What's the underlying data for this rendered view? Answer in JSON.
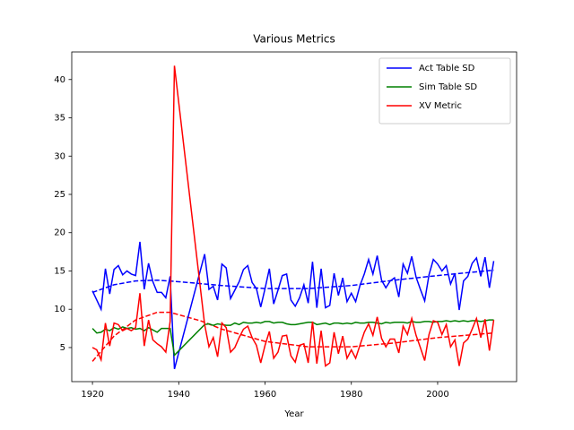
{
  "chart_data": {
    "type": "line",
    "title": "Various Metrics",
    "x_label": "Year",
    "x": [
      1920,
      1921,
      1922,
      1923,
      1924,
      1925,
      1926,
      1927,
      1928,
      1929,
      1930,
      1931,
      1932,
      1933,
      1934,
      1935,
      1936,
      1937,
      1938,
      1939,
      1946,
      1947,
      1948,
      1949,
      1950,
      1951,
      1952,
      1953,
      1954,
      1955,
      1956,
      1957,
      1958,
      1959,
      1960,
      1961,
      1962,
      1963,
      1964,
      1965,
      1966,
      1967,
      1968,
      1969,
      1970,
      1971,
      1972,
      1973,
      1974,
      1975,
      1976,
      1977,
      1978,
      1979,
      1980,
      1981,
      1982,
      1983,
      1984,
      1985,
      1986,
      1987,
      1988,
      1989,
      1990,
      1991,
      1992,
      1993,
      1994,
      1995,
      1996,
      1997,
      1998,
      1999,
      2000,
      2001,
      2002,
      2003,
      2004,
      2005,
      2006,
      2007,
      2008,
      2009,
      2010,
      2011,
      2012,
      2013
    ],
    "series": [
      {
        "name": "Act Table SD",
        "color": "#0000ff",
        "values": [
          12.4,
          11.2,
          10,
          15.3,
          12,
          15.2,
          15.7,
          14.5,
          15,
          14.6,
          14.4,
          18.8,
          12.6,
          16,
          13.6,
          12.2,
          12.2,
          11.5,
          14.3,
          2.2,
          17.2,
          12.6,
          13,
          11.2,
          15.9,
          15.4,
          11.4,
          12.5,
          13.6,
          15.2,
          15.7,
          13.5,
          12.7,
          10.3,
          12.7,
          15.3,
          10.7,
          12.5,
          14.4,
          14.6,
          11.2,
          10.4,
          11.5,
          13.2,
          10.8,
          16.2,
          10.2,
          15.3,
          10.2,
          10.5,
          14.7,
          11.8,
          14.1,
          11,
          12.1,
          11,
          13.1,
          14.6,
          16.5,
          14.6,
          17,
          13.8,
          12.8,
          13.7,
          14.1,
          11.6,
          15.9,
          14.7,
          16.9,
          14.2,
          12.6,
          11.1,
          14.5,
          16.5,
          15.9,
          15,
          15.7,
          13.3,
          14.7,
          9.9,
          13.7,
          14.3,
          16,
          16.7,
          14.3,
          16.8,
          12.8,
          16.3
        ]
      },
      {
        "name": "Sim Table SD",
        "color": "#008000",
        "values": [
          7.5,
          6.9,
          7,
          7.4,
          7.2,
          7.6,
          7.4,
          7.7,
          7.5,
          7.6,
          7.4,
          7.5,
          7.2,
          7.6,
          7.3,
          7.0,
          7.5,
          7.5,
          7.5,
          4.0,
          8.0,
          8.1,
          7.9,
          8.1,
          8.0,
          7.9,
          7.9,
          8.2,
          8.0,
          8.3,
          8.2,
          8.2,
          8.3,
          8.2,
          8.4,
          8.4,
          8.2,
          8.3,
          8.3,
          8.1,
          8.0,
          8.0,
          8.1,
          8.2,
          8.3,
          8.3,
          8.0,
          8.1,
          8.2,
          8.0,
          8.2,
          8.2,
          8.1,
          8.2,
          8.1,
          8.3,
          8.2,
          8.2,
          8.3,
          8.3,
          8.2,
          8.1,
          8.3,
          8.2,
          8.3,
          8.3,
          8.3,
          8.2,
          8.4,
          8.3,
          8.3,
          8.4,
          8.4,
          8.3,
          8.4,
          8.4,
          8.5,
          8.4,
          8.5,
          8.4,
          8.5,
          8.4,
          8.5,
          8.5,
          8.4,
          8.5,
          8.6,
          8.6
        ]
      },
      {
        "name": "XV Metric",
        "color": "#ff0000",
        "values": [
          5,
          4.7,
          3.4,
          8.2,
          5.2,
          8.2,
          8.0,
          7.2,
          7.5,
          7.2,
          7.6,
          12.1,
          5.2,
          8.6,
          6.0,
          5.5,
          5.1,
          4.4,
          8.4,
          41.8,
          8.0,
          5.1,
          6.3,
          3.8,
          8.2,
          7.6,
          4.4,
          5,
          6.3,
          7.4,
          7.8,
          6.3,
          5.3,
          3,
          5.3,
          7.1,
          3.6,
          4.4,
          6.5,
          6.6,
          3.9,
          3.1,
          5.3,
          5.5,
          3,
          8.4,
          2.9,
          7.2,
          2.6,
          3,
          7,
          4.2,
          6.5,
          3.6,
          4.7,
          3.6,
          5.3,
          7,
          8.1,
          6.6,
          9,
          6.2,
          5.1,
          6.1,
          6.1,
          4.3,
          7.8,
          6.7,
          8.8,
          6.6,
          5,
          3.3,
          6.7,
          8.5,
          8.3,
          6.7,
          8,
          5.1,
          6,
          2.6,
          5.6,
          6.1,
          7.4,
          8.8,
          6.3,
          8.7,
          4.6,
          8.6
        ]
      }
    ],
    "trends": [
      {
        "color": "#0000ff",
        "x": [
          1920,
          1925,
          1930,
          1935,
          1940,
          1950,
          1960,
          1970,
          1980,
          1990,
          2000,
          2013
        ],
        "values": [
          12.2,
          13.2,
          13.7,
          13.8,
          13.6,
          13.1,
          12.7,
          12.7,
          13.1,
          13.8,
          14.4,
          15.1
        ]
      },
      {
        "color": "#ff0000",
        "x": [
          1920,
          1925,
          1930,
          1935,
          1938,
          1945,
          1950,
          1960,
          1970,
          1980,
          1990,
          2000,
          2013
        ],
        "values": [
          3.2,
          6.5,
          8.6,
          9.6,
          9.6,
          8.5,
          7.4,
          5.8,
          5.1,
          5.1,
          5.6,
          6.3,
          6.9
        ]
      }
    ],
    "xlim": [
      1915.2,
      2018.3
    ],
    "ylim": [
      0.55,
      43.6
    ],
    "xticks": [
      1920,
      1940,
      1960,
      1980,
      2000
    ],
    "yticks": [
      5,
      10,
      15,
      20,
      25,
      30,
      35,
      40
    ],
    "legend": "upper right"
  }
}
